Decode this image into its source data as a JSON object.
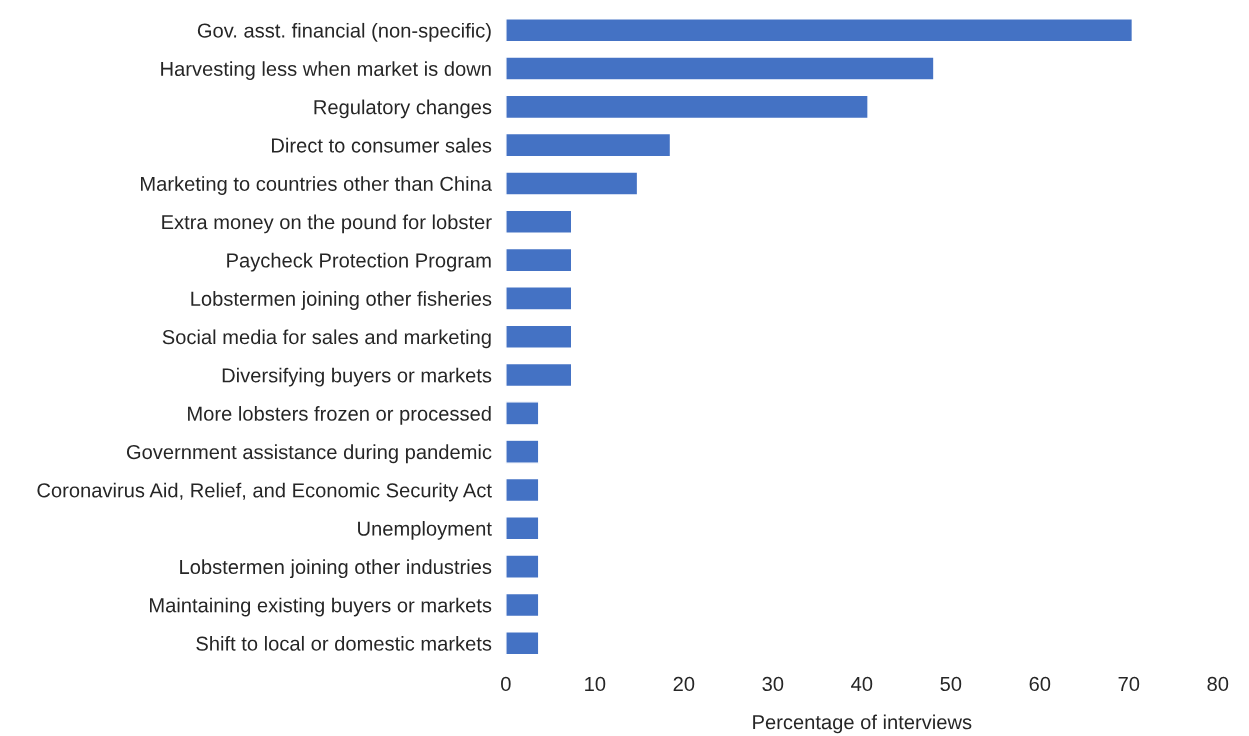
{
  "chart_data": {
    "type": "bar",
    "orientation": "horizontal",
    "xlabel": "Percentage of interviews",
    "categories": [
      "Gov. asst. financial (non-specific)",
      "Harvesting less when market is down",
      "Regulatory changes",
      "Direct to consumer sales",
      "Marketing to countries other than China",
      "Extra money on the pound for lobster",
      "Paycheck Protection Program",
      "Lobstermen joining other fisheries",
      "Social media for sales and marketing",
      "Diversifying buyers or markets",
      "More lobsters frozen or processed",
      "Government assistance during pandemic",
      "Coronavirus Aid, Relief, and Economic Security Act",
      "Unemployment",
      "Lobstermen joining other industries",
      "Maintaining existing buyers or markets",
      "Shift to local or domestic markets"
    ],
    "values": [
      70.4,
      48.1,
      40.7,
      18.5,
      14.8,
      7.4,
      7.4,
      7.4,
      7.4,
      7.4,
      3.7,
      3.7,
      3.7,
      3.7,
      3.7,
      3.7,
      3.7
    ],
    "color": "#4472c4",
    "xlim": [
      0,
      80
    ],
    "xticks": [
      0,
      10,
      20,
      30,
      40,
      50,
      60,
      70,
      80
    ],
    "grid": false,
    "legend": false
  }
}
